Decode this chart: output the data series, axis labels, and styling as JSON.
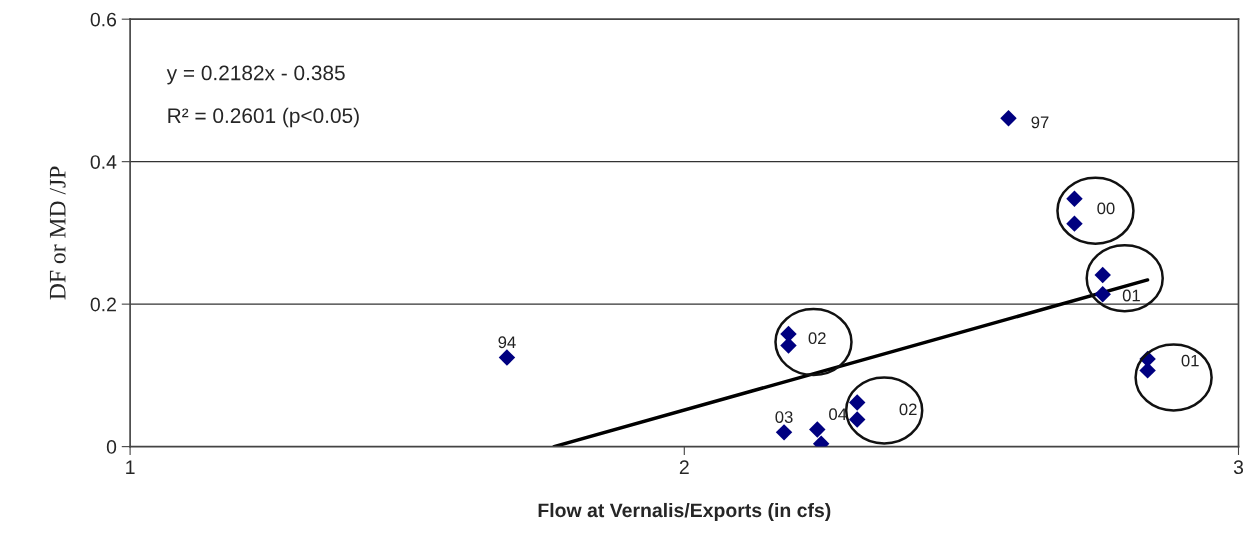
{
  "chart_data": {
    "type": "scatter",
    "xlabel": "Flow at Vernalis/Exports (in cfs)",
    "ylabel": "DF or MD /JP",
    "xlim": [
      1,
      3
    ],
    "xticks": [
      1,
      2,
      3
    ],
    "ylim": [
      0,
      0.6
    ],
    "yticks": [
      0,
      0.2,
      0.4,
      0.6
    ],
    "grid": "y",
    "series": [
      {
        "marker": "diamond",
        "color": "#000080",
        "x": [
          1.68,
          2.585,
          2.704,
          2.704,
          2.755,
          2.755,
          2.836,
          2.836,
          2.188,
          2.188,
          2.312,
          2.312,
          2.18,
          2.24,
          2.247
        ],
        "values": [
          0.125,
          0.461,
          0.348,
          0.313,
          0.241,
          0.214,
          0.123,
          0.107,
          0.158,
          0.142,
          0.062,
          0.038,
          0.02,
          0.024,
          0.004
        ]
      },
      {
        "type": "line",
        "color": "#000000",
        "x": [
          1.765,
          2.836
        ],
        "values": [
          0.0,
          0.234
        ]
      }
    ],
    "annotations": [
      "y = 0.2182x - 0.385",
      "R² = 0.2601 (p<0.05)",
      {
        "text": "94",
        "x": 1.68,
        "y": 0.125
      },
      {
        "text": "97",
        "x": 2.585,
        "y": 0.461
      },
      {
        "text": "00",
        "x": 2.704,
        "y": 0.348
      },
      {
        "text": "01",
        "x": 2.755,
        "y": 0.214
      },
      {
        "text": "01",
        "x": 2.836,
        "y": 0.107
      },
      {
        "text": "02",
        "x": 2.188,
        "y": 0.158
      },
      {
        "text": "02",
        "x": 2.312,
        "y": 0.062
      },
      {
        "text": "03",
        "x": 2.18,
        "y": 0.02
      },
      {
        "text": "04",
        "x": 2.24,
        "y": 0.024
      }
    ]
  }
}
